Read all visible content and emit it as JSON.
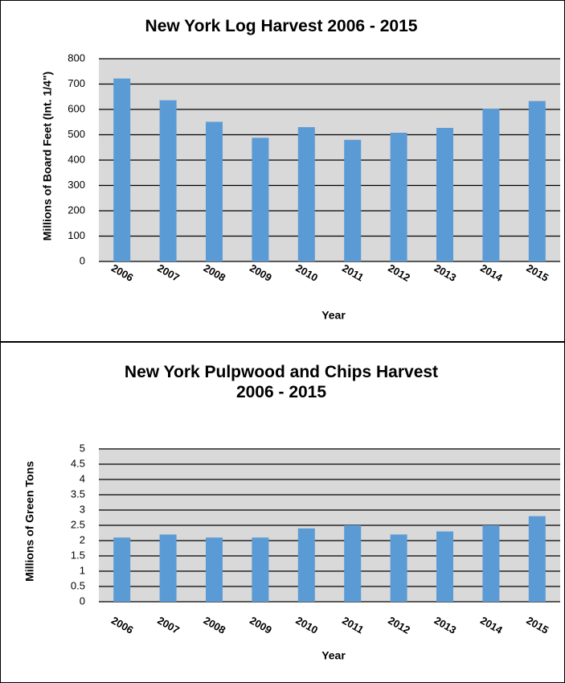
{
  "chart_data": [
    {
      "type": "bar",
      "title": "New York Log Harvest 2006 - 2015",
      "x_label": "Year",
      "y_label": "Millions of Board Feet (Int. 1/4\")",
      "categories": [
        "2006",
        "2007",
        "2008",
        "2009",
        "2010",
        "2011",
        "2012",
        "2013",
        "2014",
        "2015"
      ],
      "values": [
        722,
        636,
        551,
        488,
        530,
        480,
        508,
        527,
        603,
        633
      ],
      "color": "#5b9bd5",
      "ylim": [
        0,
        800
      ],
      "yticks": [
        0,
        100,
        200,
        300,
        400,
        500,
        600,
        700,
        800
      ],
      "grid": true
    },
    {
      "type": "bar",
      "title": "New York Pulpwood and Chips Harvest 2006 - 2015",
      "x_label": "Year",
      "y_label": "Millions of Green Tons",
      "categories": [
        "2006",
        "2007",
        "2008",
        "2009",
        "2010",
        "2011",
        "2012",
        "2013",
        "2014",
        "2015"
      ],
      "values": [
        2.1,
        2.2,
        2.1,
        2.1,
        2.4,
        2.5,
        2.2,
        2.3,
        2.5,
        2.8
      ],
      "color": "#5b9bd5",
      "ylim": [
        0,
        5
      ],
      "yticks": [
        0,
        0.5,
        1,
        1.5,
        2,
        2.5,
        3,
        3.5,
        4,
        4.5,
        5
      ],
      "grid": true
    }
  ]
}
